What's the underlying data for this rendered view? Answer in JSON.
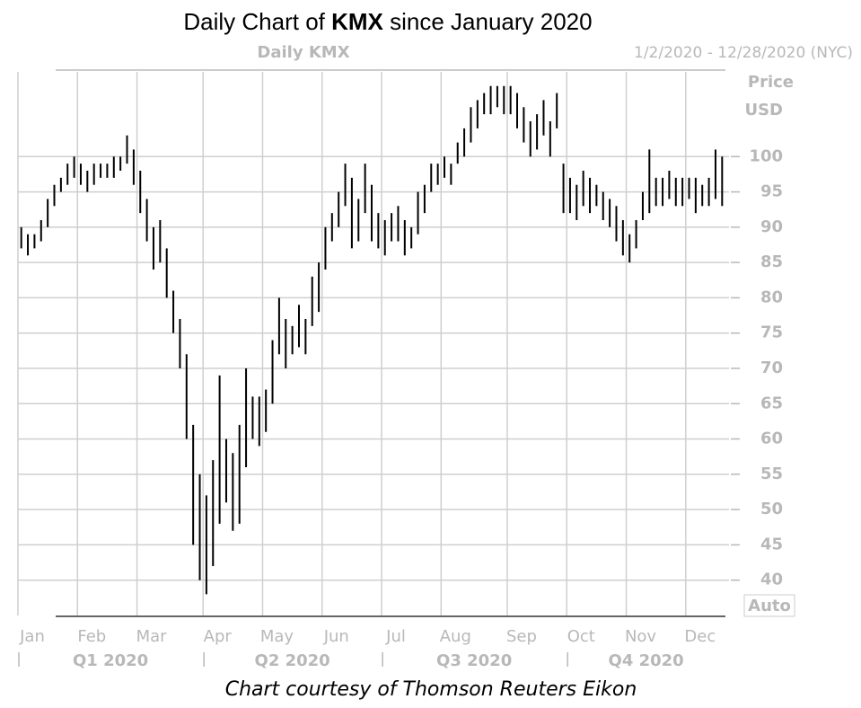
{
  "chart_data": {
    "type": "ohlc",
    "title_parts": [
      "Daily Chart of ",
      "KMX",
      " since January 2020"
    ],
    "subtitle": "Daily KMX",
    "date_range": "1/2/2020 - 12/28/2020 (NYC)",
    "y_axis_label": [
      "Price",
      "USD"
    ],
    "scale_button": "Auto",
    "caption": "Chart courtesy of Thomson Reuters Eikon",
    "color": "#000000",
    "categories": [
      "Jan",
      null,
      null,
      null,
      null,
      null,
      null,
      null,
      null,
      "Feb",
      null,
      null,
      null,
      null,
      null,
      null,
      null,
      null,
      "Mar",
      null,
      null,
      null,
      null,
      null,
      null,
      null,
      null,
      null,
      "Apr",
      null,
      null,
      null,
      null,
      null,
      null,
      null,
      null,
      "May",
      null,
      null,
      null,
      null,
      null,
      null,
      null,
      null,
      "Jun",
      null,
      null,
      null,
      null,
      null,
      null,
      null,
      null,
      "Jul",
      null,
      null,
      null,
      null,
      null,
      null,
      null,
      null,
      "Aug",
      null,
      null,
      null,
      null,
      null,
      null,
      null,
      null,
      null,
      "Sep",
      null,
      null,
      null,
      null,
      null,
      null,
      null,
      null,
      "Oct",
      null,
      null,
      null,
      null,
      null,
      null,
      null,
      null,
      "Nov",
      null,
      null,
      null,
      null,
      null,
      null,
      null,
      null,
      "Dec",
      null,
      null,
      null,
      null,
      null
    ],
    "quarters": [
      "Q1 2020",
      "Q2 2020",
      "Q3 2020",
      "Q4 2020"
    ],
    "high": [
      90,
      89,
      89,
      91,
      94,
      96,
      97,
      99,
      100,
      99,
      98,
      99,
      99,
      99,
      100,
      100,
      103,
      101,
      98,
      94,
      90,
      91,
      87,
      81,
      77,
      72,
      62,
      55,
      52,
      57,
      69,
      60,
      58,
      62,
      70,
      66,
      66,
      67,
      74,
      80,
      77,
      76,
      79,
      77,
      83,
      85,
      90,
      92,
      95,
      99,
      97,
      94,
      99,
      96,
      92,
      91,
      92,
      93,
      91,
      90,
      95,
      96,
      99,
      99,
      100,
      99,
      102,
      104,
      107,
      108,
      109,
      110,
      110,
      110,
      110,
      109,
      107,
      105,
      106,
      108,
      105,
      109,
      99,
      97,
      96,
      98,
      97,
      96,
      95,
      94,
      93,
      91,
      89,
      91,
      95,
      101,
      97,
      97,
      98,
      97,
      97,
      97,
      97,
      96,
      97,
      101,
      100
    ],
    "low": [
      87,
      86,
      87,
      88,
      90,
      93,
      95,
      96,
      97,
      96,
      95,
      96,
      97,
      97,
      97,
      98,
      99,
      96,
      92,
      88,
      84,
      85,
      80,
      75,
      70,
      60,
      45,
      40,
      38,
      42,
      48,
      51,
      47,
      48,
      56,
      60,
      59,
      61,
      65,
      72,
      70,
      72,
      73,
      72,
      76,
      78,
      84,
      88,
      90,
      93,
      87,
      88,
      92,
      88,
      87,
      86,
      88,
      88,
      86,
      87,
      89,
      92,
      95,
      96,
      97,
      96,
      99,
      100,
      102,
      104,
      106,
      106,
      107,
      106,
      106,
      104,
      102,
      100,
      101,
      103,
      100,
      104,
      92,
      92,
      91,
      93,
      92,
      93,
      91,
      90,
      88,
      86,
      85,
      87,
      91,
      92,
      93,
      93,
      94,
      93,
      93,
      94,
      92,
      93,
      93,
      94,
      93
    ],
    "ylim": [
      35,
      112
    ],
    "yticks": [
      40,
      45,
      50,
      55,
      60,
      65,
      70,
      75,
      80,
      85,
      90,
      95,
      100
    ],
    "grid": true
  }
}
